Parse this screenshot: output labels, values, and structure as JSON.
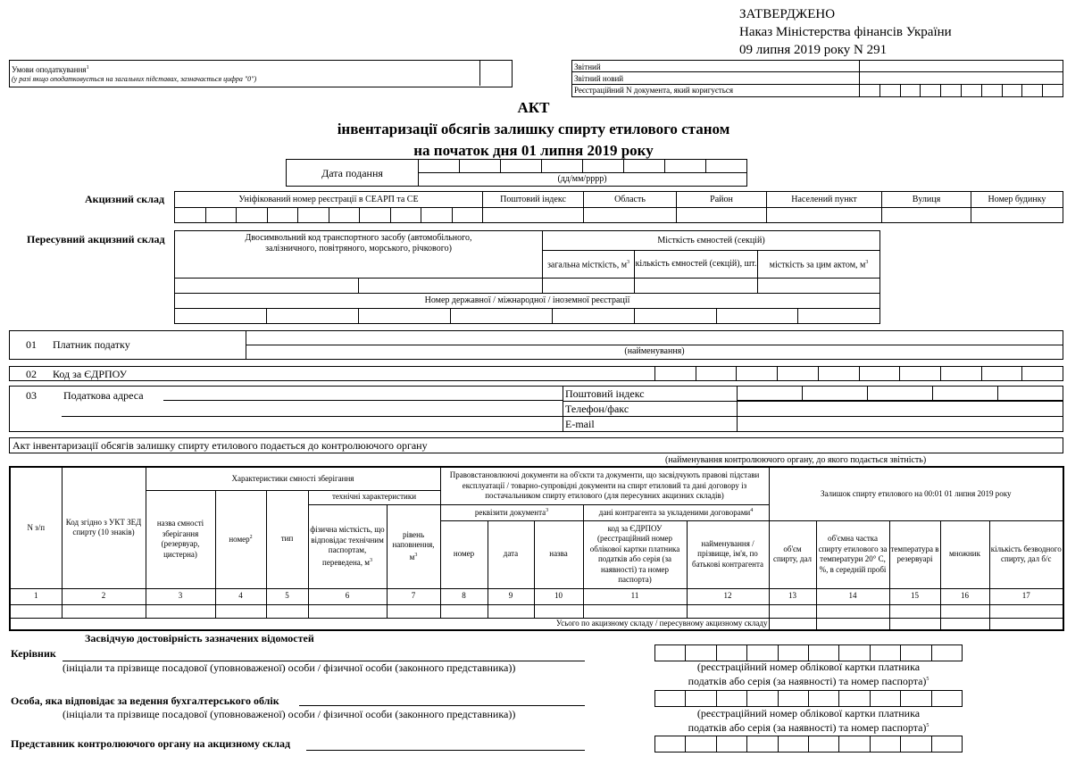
{
  "approval": {
    "line1": "ЗАТВЕРДЖЕНО",
    "line2": "Наказ Міністерства фінансів України",
    "line3": "09 липня 2019 року N 291"
  },
  "tax_conditions": {
    "label": "Умови оподаткування",
    "note_mark": "1",
    "hint": "(у разі якщо оподатковується на загальних підставах, зазначається цифра \"0\")"
  },
  "report_type": {
    "rows": [
      "Звітний",
      "Звітний новий",
      "Реєстраційний N документа, який коригується"
    ]
  },
  "title": {
    "line1": "АКТ",
    "line2": "інвентаризації обсягів залишку спирту етилового станом",
    "line3": "на початок дня 01 липня 2019 року"
  },
  "submission_date": {
    "label": "Дата подання",
    "format": "(дд/мм/рррр)"
  },
  "excise_warehouse": {
    "label": "Акцизний склад",
    "columns": [
      "Уніфікований номер реєстрації в СЕАРП та СЕ",
      "Поштовий індекс",
      "Область",
      "Район",
      "Населений пункт",
      "Вулиця",
      "Номер будинку"
    ]
  },
  "mobile_warehouse": {
    "label": "Пересувний акцизний склад",
    "transport_code": "Двосимвольний код транспортного засобу (автомобільного, залізничного, повітряного, морського, річкового)",
    "capacity": "Місткість ємностей (секцій)",
    "total_capacity": "загальна місткість, м",
    "count": "кількість ємностей (секцій), шт.",
    "act_capacity": "місткість за цим актом, м",
    "registration": "Номер державної / міжнародної / іноземної реєстрації"
  },
  "payer": {
    "num": "01",
    "label": "Платник податку",
    "caption": "(найменування)"
  },
  "edrpou": {
    "num": "02",
    "label": "Код за ЄДРПОУ"
  },
  "address": {
    "num": "03",
    "label": "Податкова адреса",
    "postal": "Поштовий індекс",
    "phone": "Телефон/факс",
    "email": "E-mail"
  },
  "submitted_to": {
    "label": "Акт інвентаризації обсягів залишку спирту етилового подається до контролюючого органу",
    "caption": "(найменування контролюючого органу, до якого подається звітність)"
  },
  "table": {
    "h_num": "N з/п",
    "h_code": "Код згідно з УКТ ЗЕД спирту (10 знаків)",
    "h_storage": "Характеристики ємності зберігання",
    "h_storage_name": "назва ємності зберігання (резервуар, цистерна)",
    "h_storage_number": "номер",
    "h_type": "тип",
    "h_tech": "технічні характеристики",
    "h_phys": "фізична місткість, що відповідає технічним паспортам, переведена, м",
    "h_level": "рівень наповнення, м",
    "h_docs": "Правовстановлюючі документи на об'єкти та документи, що засвідчують правові підстави експлуатації / товарно-супровідні документи на спирт етиловий та дані договору із постачальником спирту етилового (для пересувних акцизних складів)",
    "h_requisites": "реквізити документа",
    "h_contractor": "дані контрагента за укладеними договорами",
    "h_doc_number": "номер",
    "h_doc_date": "дата",
    "h_doc_name": "назва",
    "h_contr_code": "код за ЄДРПОУ (реєстраційний номер облікової картки платника податків або серія (за наявності) та номер паспорта)",
    "h_contr_name": "найменування / прізвище, ім'я, по батькові контрагента",
    "h_balance": "Залишок спирту етилового на 00:01 01 липня 2019 року",
    "h_volume": "об'єм спирту, дал",
    "h_fraction": "об'ємна частка спирту етилового за температури 20° C, %, в середній пробі",
    "h_temp": "температура в резервуарі",
    "h_mult": "множник",
    "h_anhydrous": "кількість безводного спирту, дал б/с",
    "col_numbers": [
      "1",
      "2",
      "3",
      "4",
      "5",
      "6",
      "7",
      "8",
      "9",
      "10",
      "11",
      "12",
      "13",
      "14",
      "15",
      "16",
      "17"
    ],
    "total_label": "Усього по акцизному складу / пересувному акцизному складу"
  },
  "signatures": {
    "certify": "Засвідчую достовірність зазначених відомостей",
    "head": "Керівник",
    "accountant": "Особа, яка відповідає за ведення бухгалтерського облік",
    "controller": "Представник контролюючого органу на акцизному склад",
    "name_caption": "(ініціали та прізвище посадової (уповноваженої) особи / фізичної особи (законного представника))",
    "reg_caption1": "(реєстраційний номер облікової картки платника",
    "reg_caption2": "податків або серія (за наявності) та номер паспорта)",
    "reg_mark": "5"
  }
}
